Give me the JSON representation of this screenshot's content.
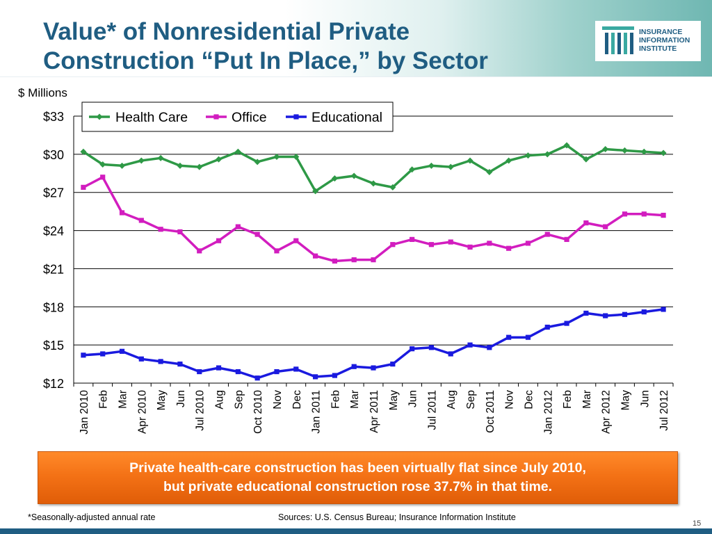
{
  "slide": {
    "title_line1": "Value* of Nonresidential Private",
    "title_line2": "Construction “Put In Place,” by Sector",
    "logo_line1": "INSURANCE",
    "logo_line2": "INFORMATION",
    "logo_line3": "INSTITUTE",
    "callout_line1": "Private health-care construction has been virtually flat since July 2010,",
    "callout_line2": "but private educational construction rose 37.7% in that time.",
    "footnote": "*Seasonally-adjusted annual rate",
    "sources": "Sources: U.S. Census Bureau; Insurance Information Institute",
    "page_number": "15",
    "colors": {
      "title": "#1f5d82",
      "callout": "#f47216"
    }
  },
  "chart_data": {
    "type": "line",
    "ylabel": "$ Millions",
    "ylim": [
      12,
      33
    ],
    "yticks": [
      12,
      15,
      18,
      21,
      24,
      27,
      30,
      33
    ],
    "ytick_labels": [
      "$12",
      "$15",
      "$18",
      "$21",
      "$24",
      "$27",
      "$30",
      "$33"
    ],
    "grid": true,
    "legend_position": "top-left",
    "categories": [
      "Jan 2010",
      "Feb",
      "Mar",
      "Apr 2010",
      "May",
      "Jun",
      "Jul 2010",
      "Aug",
      "Sep",
      "Oct 2010",
      "Nov",
      "Dec",
      "Jan 2011",
      "Feb",
      "Mar",
      "Apr 2011",
      "May",
      "Jun",
      "Jul 2011",
      "Aug",
      "Sep",
      "Oct 2011",
      "Nov",
      "Dec",
      "Jan 2012",
      "Feb",
      "Mar",
      "Apr 2012",
      "May",
      "Jun",
      "Jul 2012"
    ],
    "series": [
      {
        "name": "Health Care",
        "color": "#2e9946",
        "marker": "diamond",
        "values": [
          30.2,
          29.2,
          29.1,
          29.5,
          29.7,
          29.1,
          29.0,
          29.6,
          30.2,
          29.4,
          29.8,
          29.8,
          27.1,
          28.1,
          28.3,
          27.7,
          27.4,
          28.8,
          29.1,
          29.0,
          29.5,
          28.6,
          29.5,
          29.9,
          30.0,
          30.7,
          29.6,
          30.4,
          30.3,
          30.2,
          30.1
        ]
      },
      {
        "name": "Office",
        "color": "#d21dbf",
        "marker": "square",
        "values": [
          27.4,
          28.2,
          25.4,
          24.8,
          24.1,
          23.9,
          22.4,
          23.2,
          24.3,
          23.7,
          22.4,
          23.2,
          22.0,
          21.6,
          21.7,
          21.7,
          22.9,
          23.3,
          22.9,
          23.1,
          22.7,
          23.0,
          22.6,
          23.0,
          23.7,
          23.3,
          24.6,
          24.3,
          25.3,
          25.3,
          25.2
        ]
      },
      {
        "name": "Educational",
        "color": "#1a1adf",
        "marker": "square",
        "values": [
          14.2,
          14.3,
          14.5,
          13.9,
          13.7,
          13.5,
          12.9,
          13.2,
          12.9,
          12.4,
          12.9,
          13.1,
          12.5,
          12.6,
          13.3,
          13.2,
          13.5,
          14.7,
          14.8,
          14.3,
          15.0,
          14.8,
          15.6,
          15.6,
          16.4,
          16.7,
          17.5,
          17.3,
          17.4,
          17.6,
          17.8
        ]
      }
    ]
  }
}
